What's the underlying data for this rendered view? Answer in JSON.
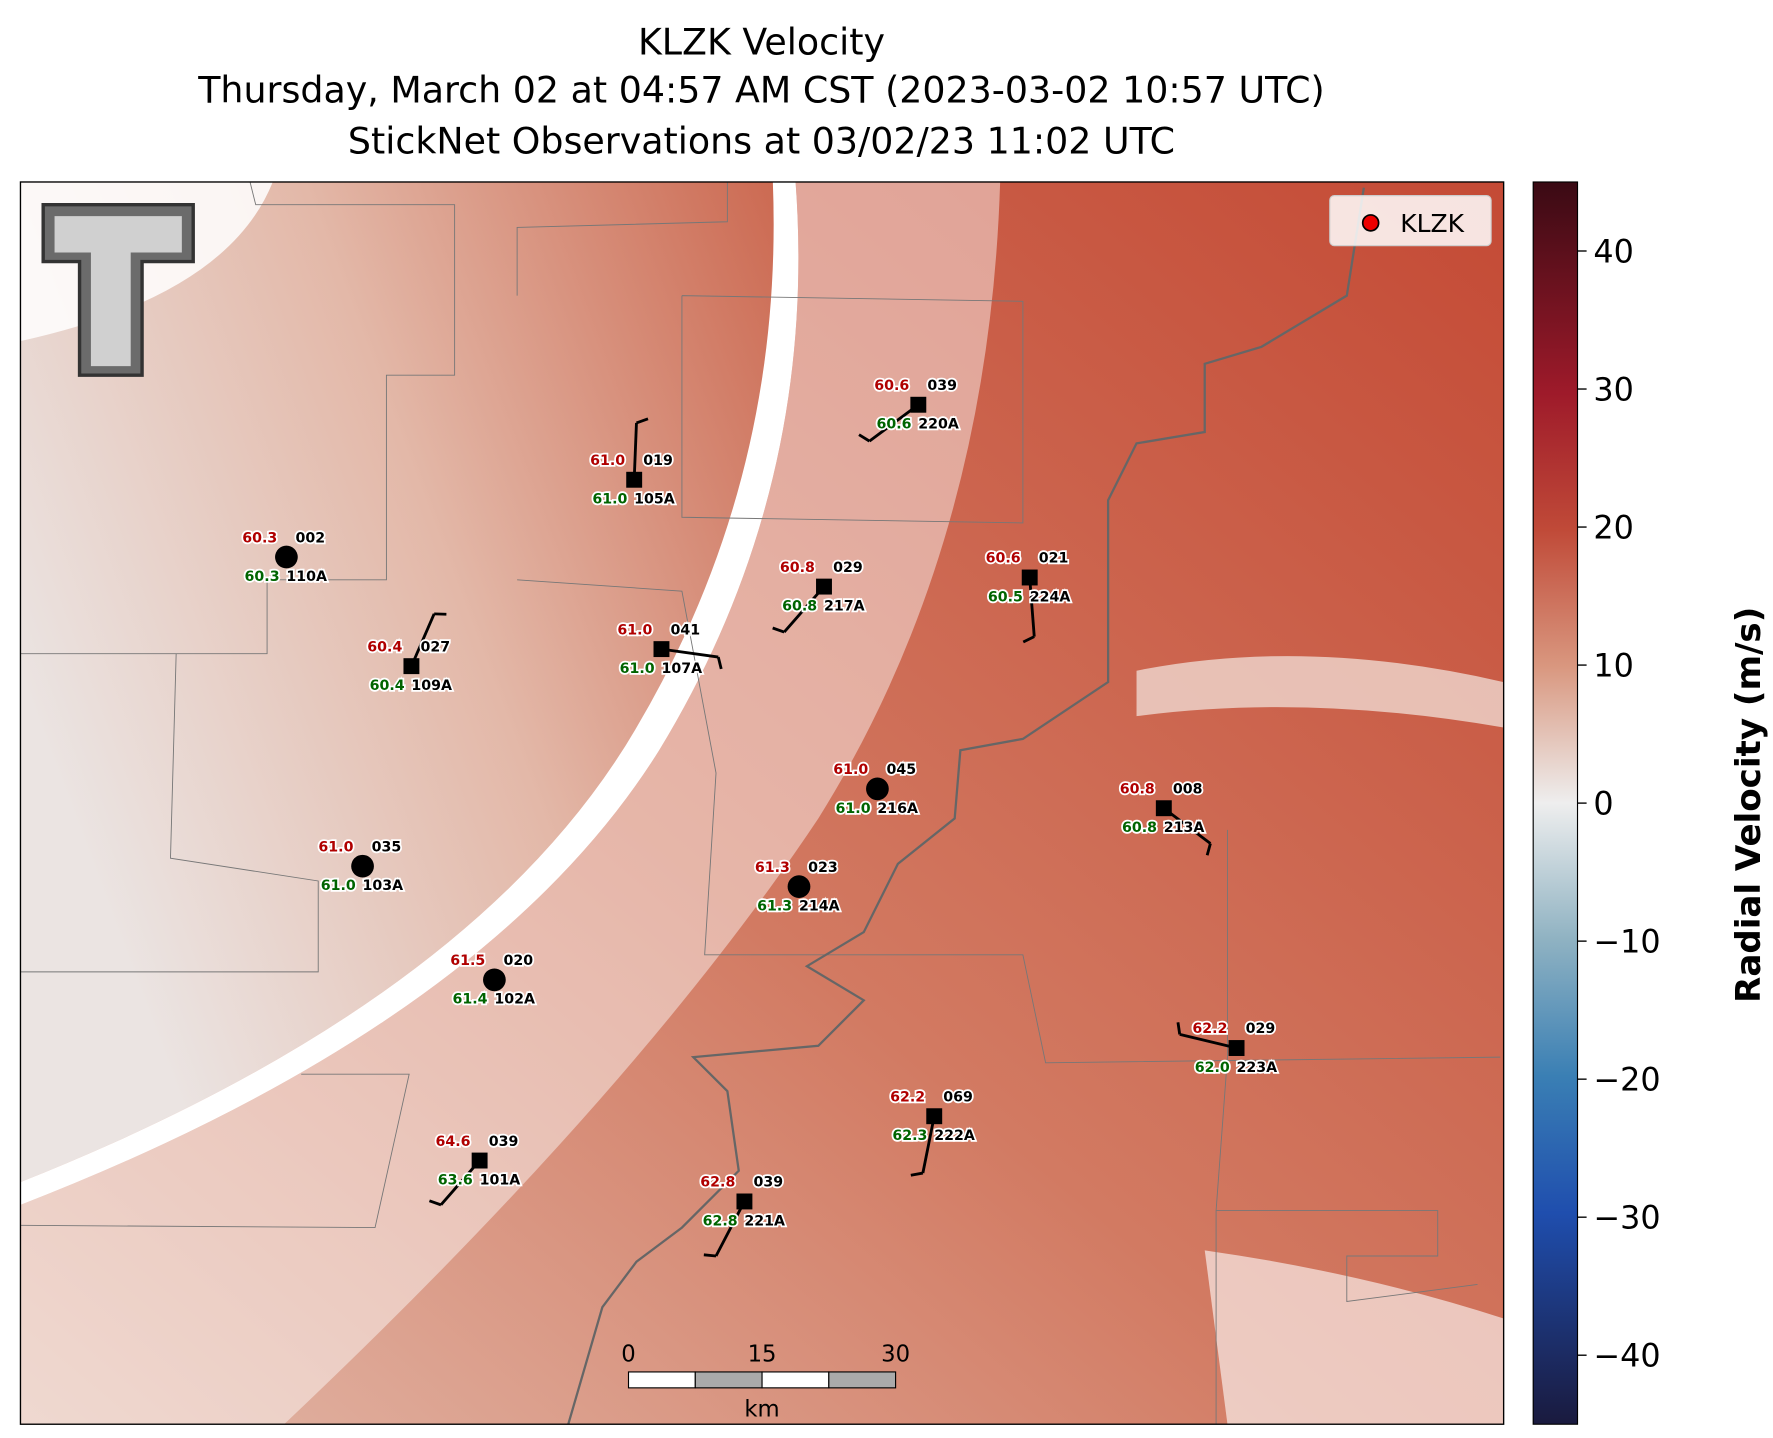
{
  "header": {
    "title": "KLZK Velocity",
    "subtitle": "Thursday, March 02 at 04:57 AM CST (2023-03-02 10:57 UTC)",
    "observation_time": "StickNet Observations at 03/02/23 11:02 UTC"
  },
  "legend": {
    "label": "KLZK"
  },
  "stations": [
    {
      "temperature": "60.3",
      "direction": "002",
      "dewpoint": "60.3",
      "id": "110A"
    },
    {
      "temperature": "61.0",
      "direction": "019",
      "dewpoint": "61.0",
      "id": "105A"
    },
    {
      "temperature": "60.6",
      "direction": "039",
      "dewpoint": "60.6",
      "id": "220A"
    },
    {
      "temperature": "60.4",
      "direction": "027",
      "dewpoint": "60.4",
      "id": "109A"
    },
    {
      "temperature": "61.0",
      "direction": "041",
      "dewpoint": "61.0",
      "id": "107A"
    },
    {
      "temperature": "60.8",
      "direction": "029",
      "dewpoint": "60.8",
      "id": "217A"
    },
    {
      "temperature": "60.6",
      "direction": "021",
      "dewpoint": "60.5",
      "id": "224A"
    },
    {
      "temperature": "61.0",
      "direction": "045",
      "dewpoint": "61.0",
      "id": "216A"
    },
    {
      "temperature": "60.8",
      "direction": "008",
      "dewpoint": "60.8",
      "id": "213A"
    },
    {
      "temperature": "61.0",
      "direction": "035",
      "dewpoint": "61.0",
      "id": "103A"
    },
    {
      "temperature": "61.3",
      "direction": "023",
      "dewpoint": "61.3",
      "id": "214A"
    },
    {
      "temperature": "61.5",
      "direction": "020",
      "dewpoint": "61.4",
      "id": "102A"
    },
    {
      "temperature": "62.2",
      "direction": "029",
      "dewpoint": "62.0",
      "id": "223A"
    },
    {
      "temperature": "62.2",
      "direction": "069",
      "dewpoint": "62.3",
      "id": "222A"
    },
    {
      "temperature": "64.6",
      "direction": "039",
      "dewpoint": "63.6",
      "id": "101A"
    },
    {
      "temperature": "62.8",
      "direction": "039",
      "dewpoint": "62.8",
      "id": "221A"
    }
  ],
  "scale_bar": {
    "labels": [
      "0",
      "15",
      "30"
    ],
    "unit": "km"
  },
  "colorbar": {
    "label": "Radial Velocity (m/s)",
    "range": [
      -45,
      45
    ],
    "ticks": [
      40,
      30,
      20,
      10,
      0,
      {
        "value": -10,
        "label": "−10"
      },
      {
        "value": -20,
        "label": "−20"
      },
      {
        "value": -30,
        "label": "−30"
      },
      {
        "value": -40,
        "label": "−40"
      }
    ]
  }
}
